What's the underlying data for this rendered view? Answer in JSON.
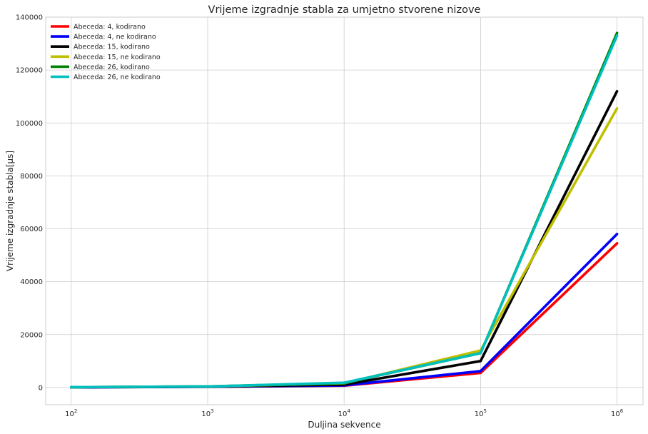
{
  "chart_data": {
    "type": "line",
    "title": "Vrijeme izgradnje stabla za umjetno stvorene nizove",
    "xlabel": "Duljina sekvence",
    "ylabel": "Vrijeme izgradnje stabla[μs]",
    "xscale": "log",
    "xlim": [
      65,
      1550000
    ],
    "ylim": [
      -6500,
      140000
    ],
    "x": [
      100,
      1000,
      10000,
      100000,
      1000000
    ],
    "x_tick_labels": [
      {
        "base": "10",
        "exp": "2",
        "value": 100
      },
      {
        "base": "10",
        "exp": "3",
        "value": 1000
      },
      {
        "base": "10",
        "exp": "4",
        "value": 10000
      },
      {
        "base": "10",
        "exp": "5",
        "value": 100000
      },
      {
        "base": "10",
        "exp": "6",
        "value": 1000000
      }
    ],
    "y_ticks": [
      0,
      20000,
      40000,
      60000,
      80000,
      100000,
      120000,
      140000
    ],
    "y_tick_labels": [
      "0",
      "20000",
      "40000",
      "60000",
      "80000",
      "100000",
      "120000",
      "140000"
    ],
    "grid": true,
    "legend_position": "top-left",
    "series": [
      {
        "name": "Abeceda: 4, kodirano",
        "color": "#ff0000",
        "values": [
          50,
          300,
          700,
          5500,
          54500
        ]
      },
      {
        "name": "Abeceda: 4, ne kodirano",
        "color": "#0000ff",
        "values": [
          50,
          300,
          800,
          6200,
          58000
        ]
      },
      {
        "name": "Abeceda: 15, kodirano",
        "color": "#000000",
        "values": [
          100,
          350,
          1100,
          10000,
          112000
        ]
      },
      {
        "name": "Abeceda: 15, ne kodirano",
        "color": "#bfbf00",
        "values": [
          150,
          400,
          1600,
          14000,
          105500
        ]
      },
      {
        "name": "Abeceda: 26, kodirano",
        "color": "#008000",
        "values": [
          150,
          400,
          1700,
          13000,
          134000
        ]
      },
      {
        "name": "Abeceda: 26, ne kodirano",
        "color": "#00bfbf",
        "values": [
          150,
          400,
          1800,
          13000,
          133000
        ]
      }
    ]
  }
}
